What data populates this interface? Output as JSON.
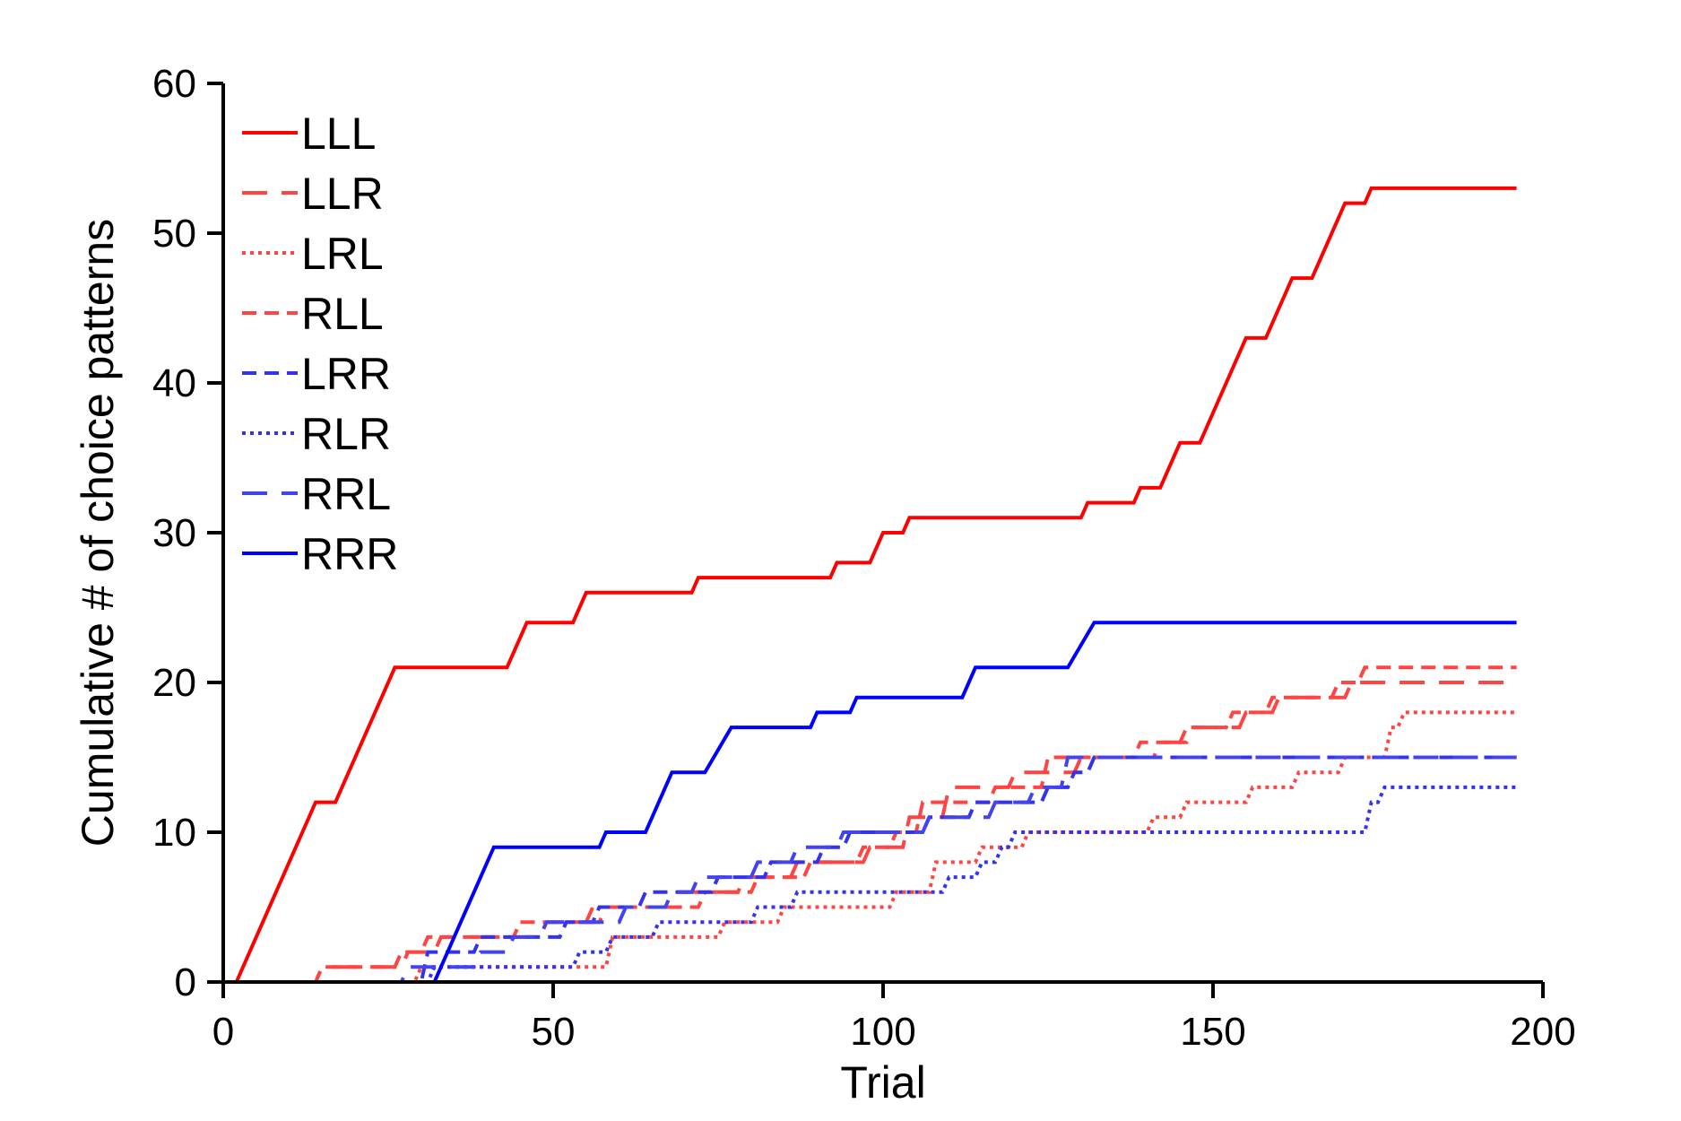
{
  "chart_data": {
    "type": "line",
    "title": "",
    "xlabel": "Trial",
    "ylabel": "Cumulative # of choice patterns",
    "xlim": [
      0,
      200
    ],
    "ylim": [
      0,
      60
    ],
    "xticks": [
      0,
      50,
      100,
      150,
      200
    ],
    "yticks": [
      0,
      10,
      20,
      30,
      40,
      50,
      60
    ],
    "grid": false,
    "legend_position": "top-left",
    "series": [
      {
        "name": "LLL",
        "color": "#ff0000",
        "dash": "solid",
        "points": [
          [
            2,
            0
          ],
          [
            14,
            12
          ],
          [
            17,
            12
          ],
          [
            26,
            21
          ],
          [
            43,
            21
          ],
          [
            46,
            24
          ],
          [
            53,
            24
          ],
          [
            55,
            26
          ],
          [
            71,
            26
          ],
          [
            72,
            27
          ],
          [
            92,
            27
          ],
          [
            93,
            28
          ],
          [
            98,
            28
          ],
          [
            100,
            30
          ],
          [
            103,
            30
          ],
          [
            104,
            31
          ],
          [
            130,
            31
          ],
          [
            131,
            32
          ],
          [
            138,
            32
          ],
          [
            139,
            33
          ],
          [
            142,
            33
          ],
          [
            145,
            36
          ],
          [
            148,
            36
          ],
          [
            155,
            43
          ],
          [
            158,
            43
          ],
          [
            162,
            47
          ],
          [
            165,
            47
          ],
          [
            170,
            52
          ],
          [
            173,
            52
          ],
          [
            174,
            53
          ],
          [
            196,
            53
          ]
        ]
      },
      {
        "name": "LLR",
        "color": "#ff4444",
        "dash": "long",
        "points": [
          [
            0,
            0
          ],
          [
            14,
            0
          ],
          [
            15,
            1
          ],
          [
            27,
            1
          ],
          [
            28,
            2
          ],
          [
            32,
            2
          ],
          [
            33,
            3
          ],
          [
            48,
            3
          ],
          [
            49,
            4
          ],
          [
            57,
            4
          ],
          [
            58,
            5
          ],
          [
            68,
            5
          ],
          [
            69,
            6
          ],
          [
            78,
            6
          ],
          [
            79,
            7
          ],
          [
            86,
            7
          ],
          [
            87,
            8
          ],
          [
            97,
            8
          ],
          [
            98,
            9
          ],
          [
            103,
            9
          ],
          [
            104,
            11
          ],
          [
            109,
            11
          ],
          [
            110,
            13
          ],
          [
            119,
            13
          ],
          [
            120,
            14
          ],
          [
            129,
            14
          ],
          [
            130,
            15
          ],
          [
            141,
            15
          ],
          [
            142,
            16
          ],
          [
            146,
            16
          ],
          [
            147,
            17
          ],
          [
            154,
            17
          ],
          [
            155,
            18
          ],
          [
            159,
            18
          ],
          [
            160,
            19
          ],
          [
            170,
            19
          ],
          [
            171,
            20
          ],
          [
            196,
            20
          ]
        ]
      },
      {
        "name": "LRL",
        "color": "#ff4444",
        "dash": "dot",
        "points": [
          [
            0,
            0
          ],
          [
            29,
            0
          ],
          [
            30,
            1
          ],
          [
            58,
            1
          ],
          [
            59,
            3
          ],
          [
            75,
            3
          ],
          [
            76,
            4
          ],
          [
            84,
            4
          ],
          [
            85,
            5
          ],
          [
            101,
            5
          ],
          [
            102,
            6
          ],
          [
            107,
            6
          ],
          [
            108,
            8
          ],
          [
            114,
            8
          ],
          [
            115,
            9
          ],
          [
            121,
            9
          ],
          [
            122,
            10
          ],
          [
            140,
            10
          ],
          [
            141,
            11
          ],
          [
            145,
            11
          ],
          [
            146,
            12
          ],
          [
            155,
            12
          ],
          [
            156,
            13
          ],
          [
            162,
            13
          ],
          [
            163,
            14
          ],
          [
            169,
            14
          ],
          [
            170,
            15
          ],
          [
            176,
            15
          ],
          [
            177,
            17
          ],
          [
            178,
            17
          ],
          [
            179,
            18
          ],
          [
            196,
            18
          ]
        ]
      },
      {
        "name": "RLL",
        "color": "#ff4444",
        "dash": "dash",
        "points": [
          [
            0,
            0
          ],
          [
            14,
            0
          ],
          [
            15,
            1
          ],
          [
            26,
            1
          ],
          [
            27,
            2
          ],
          [
            30,
            2
          ],
          [
            31,
            3
          ],
          [
            44,
            3
          ],
          [
            45,
            4
          ],
          [
            55,
            4
          ],
          [
            56,
            5
          ],
          [
            72,
            5
          ],
          [
            73,
            6
          ],
          [
            80,
            6
          ],
          [
            81,
            7
          ],
          [
            88,
            7
          ],
          [
            89,
            8
          ],
          [
            96,
            8
          ],
          [
            97,
            9
          ],
          [
            101,
            9
          ],
          [
            102,
            10
          ],
          [
            105,
            10
          ],
          [
            106,
            12
          ],
          [
            116,
            12
          ],
          [
            117,
            13
          ],
          [
            124,
            13
          ],
          [
            125,
            15
          ],
          [
            138,
            15
          ],
          [
            139,
            16
          ],
          [
            145,
            16
          ],
          [
            146,
            17
          ],
          [
            152,
            17
          ],
          [
            153,
            18
          ],
          [
            158,
            18
          ],
          [
            159,
            19
          ],
          [
            168,
            19
          ],
          [
            169,
            20
          ],
          [
            172,
            20
          ],
          [
            173,
            21
          ],
          [
            196,
            21
          ]
        ]
      },
      {
        "name": "LRR",
        "color": "#3333ee",
        "dash": "dash",
        "points": [
          [
            0,
            0
          ],
          [
            30,
            0
          ],
          [
            31,
            2
          ],
          [
            38,
            2
          ],
          [
            39,
            3
          ],
          [
            51,
            3
          ],
          [
            52,
            4
          ],
          [
            56,
            4
          ],
          [
            57,
            5
          ],
          [
            63,
            5
          ],
          [
            64,
            6
          ],
          [
            74,
            6
          ],
          [
            75,
            7
          ],
          [
            82,
            7
          ],
          [
            83,
            8
          ],
          [
            90,
            8
          ],
          [
            91,
            9
          ],
          [
            94,
            9
          ],
          [
            95,
            10
          ],
          [
            106,
            10
          ],
          [
            107,
            11
          ],
          [
            113,
            11
          ],
          [
            114,
            12
          ],
          [
            124,
            12
          ],
          [
            125,
            13
          ],
          [
            128,
            13
          ],
          [
            129,
            14
          ],
          [
            131,
            14
          ],
          [
            132,
            15
          ],
          [
            196,
            15
          ]
        ]
      },
      {
        "name": "RLR",
        "color": "#3333ee",
        "dash": "dot",
        "points": [
          [
            0,
            0
          ],
          [
            31,
            0
          ],
          [
            32,
            1
          ],
          [
            53,
            1
          ],
          [
            54,
            2
          ],
          [
            58,
            2
          ],
          [
            59,
            3
          ],
          [
            65,
            3
          ],
          [
            66,
            4
          ],
          [
            80,
            4
          ],
          [
            81,
            5
          ],
          [
            86,
            5
          ],
          [
            87,
            6
          ],
          [
            109,
            6
          ],
          [
            110,
            7
          ],
          [
            114,
            7
          ],
          [
            115,
            8
          ],
          [
            117,
            8
          ],
          [
            118,
            9
          ],
          [
            119,
            9
          ],
          [
            120,
            10
          ],
          [
            173,
            10
          ],
          [
            174,
            12
          ],
          [
            175,
            12
          ],
          [
            176,
            13
          ],
          [
            196,
            13
          ]
        ]
      },
      {
        "name": "RRL",
        "color": "#4444ee",
        "dash": "long",
        "points": [
          [
            0,
            0
          ],
          [
            27,
            0
          ],
          [
            28,
            1
          ],
          [
            38,
            1
          ],
          [
            39,
            2
          ],
          [
            43,
            2
          ],
          [
            44,
            3
          ],
          [
            48,
            3
          ],
          [
            49,
            4
          ],
          [
            60,
            4
          ],
          [
            61,
            5
          ],
          [
            67,
            5
          ],
          [
            68,
            6
          ],
          [
            71,
            6
          ],
          [
            72,
            7
          ],
          [
            80,
            7
          ],
          [
            81,
            8
          ],
          [
            86,
            8
          ],
          [
            87,
            9
          ],
          [
            93,
            9
          ],
          [
            94,
            10
          ],
          [
            106,
            10
          ],
          [
            107,
            11
          ],
          [
            116,
            11
          ],
          [
            117,
            12
          ],
          [
            122,
            12
          ],
          [
            123,
            13
          ],
          [
            127,
            13
          ],
          [
            128,
            15
          ],
          [
            196,
            15
          ]
        ]
      },
      {
        "name": "RRR",
        "color": "#0000ff",
        "dash": "solid",
        "points": [
          [
            0,
            0
          ],
          [
            32,
            0
          ],
          [
            41,
            9
          ],
          [
            57,
            9
          ],
          [
            58,
            10
          ],
          [
            64,
            10
          ],
          [
            68,
            14
          ],
          [
            73,
            14
          ],
          [
            77,
            17
          ],
          [
            89,
            17
          ],
          [
            90,
            18
          ],
          [
            95,
            18
          ],
          [
            96,
            19
          ],
          [
            112,
            19
          ],
          [
            114,
            21
          ],
          [
            128,
            21
          ],
          [
            132,
            24
          ],
          [
            196,
            24
          ]
        ]
      }
    ]
  }
}
